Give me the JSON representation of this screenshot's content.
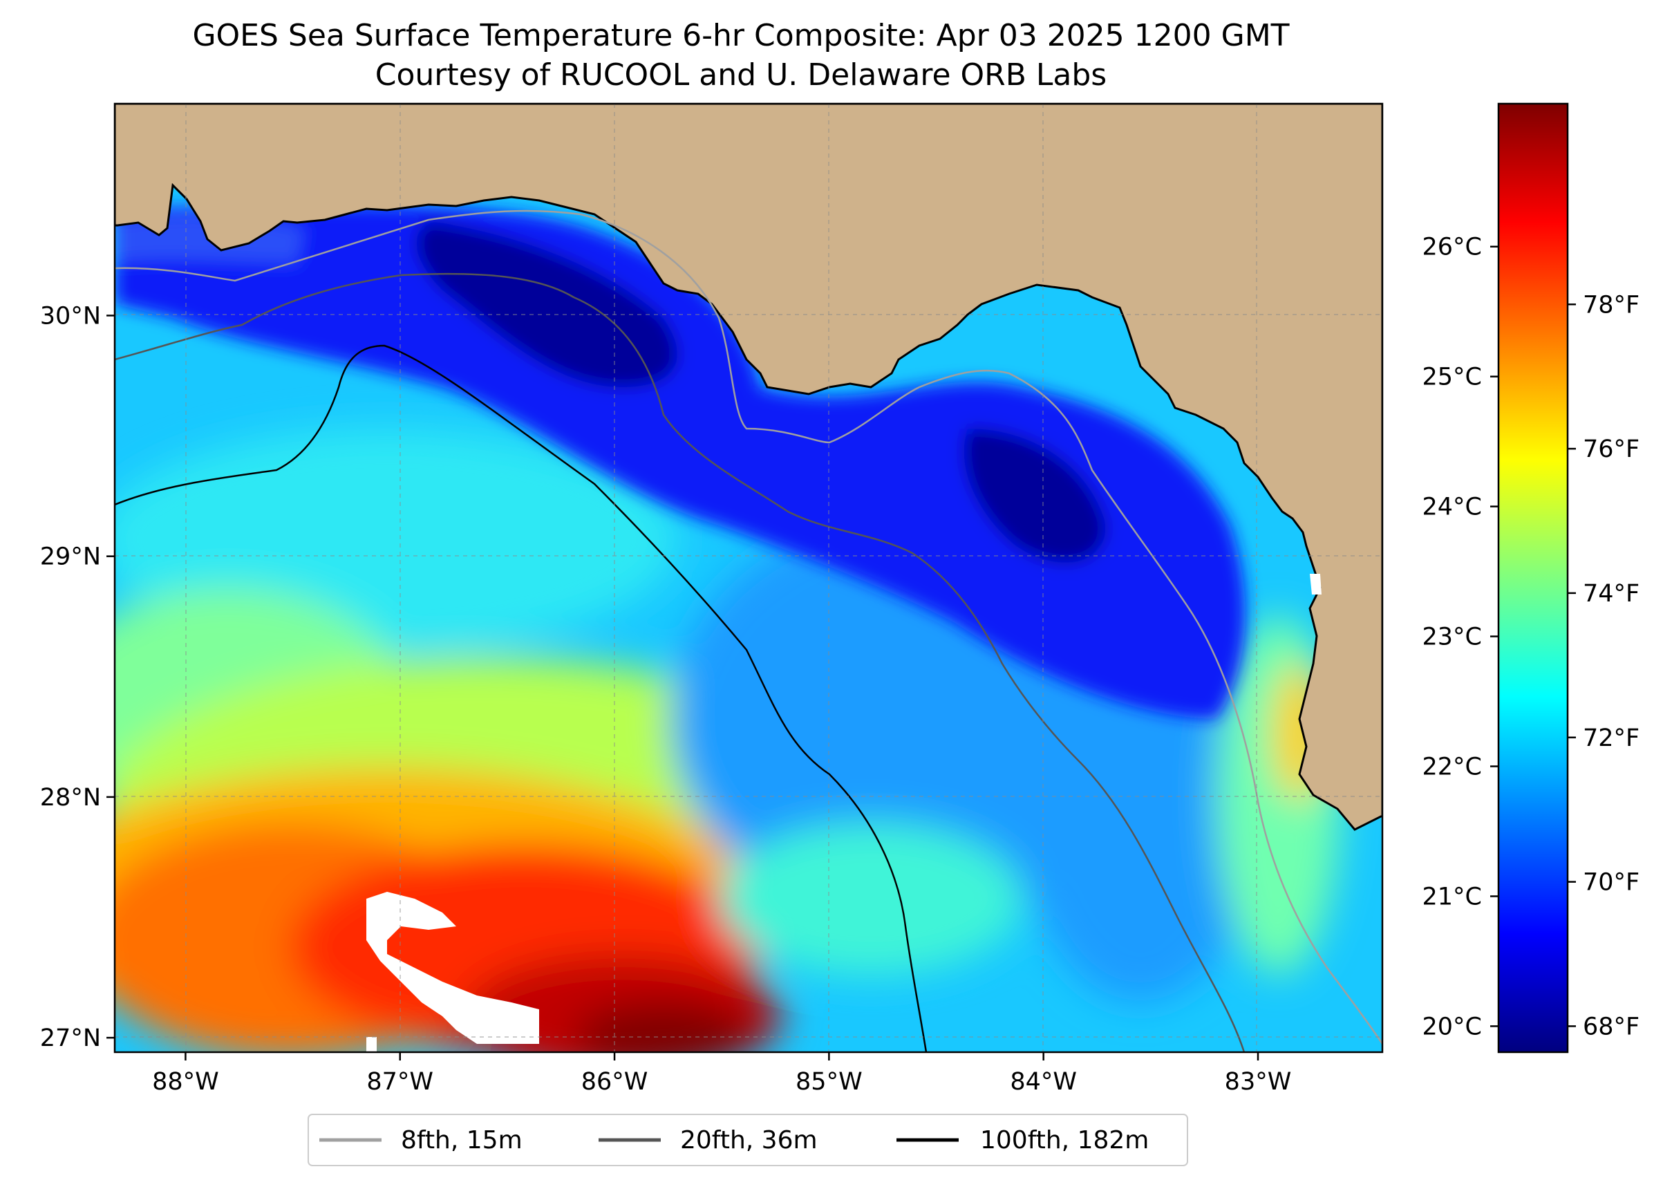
{
  "title": {
    "line1": "GOES Sea Surface Temperature 6-hr Composite: Apr 03 2025 1200 GMT",
    "line2": "Courtesy of RUCOOL and U. Delaware ORB Labs"
  },
  "map": {
    "lon_range": [
      -88.33,
      -82.42
    ],
    "lat_range": [
      26.94,
      30.88
    ],
    "gridlines": true,
    "land_color": "#cfb28b",
    "missing_color": "#ffffff",
    "x_ticks": [
      {
        "value": -88,
        "label": "88°W"
      },
      {
        "value": -87,
        "label": "87°W"
      },
      {
        "value": -86,
        "label": "86°W"
      },
      {
        "value": -85,
        "label": "85°W"
      },
      {
        "value": -84,
        "label": "84°W"
      },
      {
        "value": -83,
        "label": "83°W"
      }
    ],
    "y_ticks": [
      {
        "value": 27,
        "label": "27°N"
      },
      {
        "value": 28,
        "label": "28°N"
      },
      {
        "value": 29,
        "label": "29°N"
      },
      {
        "value": 30,
        "label": "30°N"
      }
    ]
  },
  "colorbar": {
    "colormap": "jet",
    "c_range": [
      19.8,
      27.1
    ],
    "celsius_ticks": [
      {
        "value": 20,
        "label": "20°C"
      },
      {
        "value": 21,
        "label": "21°C"
      },
      {
        "value": 22,
        "label": "22°C"
      },
      {
        "value": 23,
        "label": "23°C"
      },
      {
        "value": 24,
        "label": "24°C"
      },
      {
        "value": 25,
        "label": "25°C"
      },
      {
        "value": 26,
        "label": "26°C"
      }
    ],
    "fahrenheit_ticks": [
      {
        "value": 68,
        "label": "68°F"
      },
      {
        "value": 70,
        "label": "70°F"
      },
      {
        "value": 72,
        "label": "72°F"
      },
      {
        "value": 74,
        "label": "74°F"
      },
      {
        "value": 76,
        "label": "76°F"
      },
      {
        "value": 78,
        "label": "78°F"
      }
    ],
    "stops": [
      "#00007f",
      "#0000ff",
      "#007fff",
      "#00ffff",
      "#7fff7f",
      "#ffff00",
      "#ff7f00",
      "#ff0000",
      "#7f0000"
    ]
  },
  "legend": {
    "placement": "below-map",
    "items": [
      {
        "label": "8fth, 15m",
        "color": "#a0a0a0"
      },
      {
        "label": "20fth, 36m",
        "color": "#555555"
      },
      {
        "label": "100fth, 182m",
        "color": "#000000"
      }
    ]
  }
}
